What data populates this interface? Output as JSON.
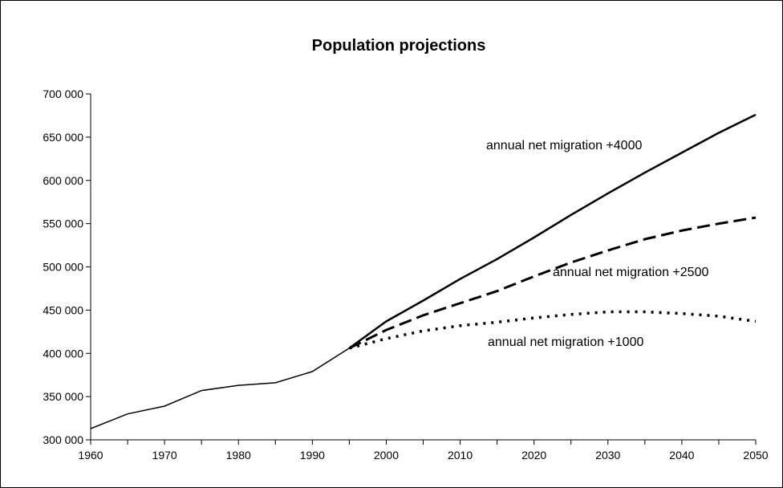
{
  "chart_data": {
    "type": "line",
    "title": "Population projections",
    "xlabel": "",
    "ylabel": "",
    "xlim": [
      1960,
      2050
    ],
    "ylim": [
      300000,
      700000
    ],
    "x_ticks": [
      "1960",
      "1970",
      "1980",
      "1990",
      "2000",
      "2010",
      "2020",
      "2030",
      "2040",
      "2050"
    ],
    "y_ticks": [
      "300 000",
      "350 000",
      "400 000",
      "450 000",
      "500 000",
      "550 000",
      "600 000",
      "650 000",
      "700 000"
    ],
    "grid": false,
    "legend": "none",
    "historical": {
      "x": [
        1960,
        1965,
        1970,
        1975,
        1980,
        1985,
        1990,
        1995
      ],
      "y": [
        313000,
        330000,
        339000,
        357000,
        363000,
        366000,
        379000,
        406000
      ]
    },
    "series": [
      {
        "name": "annual net migration +4000",
        "style": "solid",
        "x": [
          1995,
          2000,
          2005,
          2010,
          2015,
          2020,
          2025,
          2030,
          2035,
          2040,
          2045,
          2050
        ],
        "y": [
          406000,
          437000,
          461000,
          486000,
          509000,
          534000,
          560000,
          585000,
          609000,
          632000,
          655000,
          676000
        ]
      },
      {
        "name": "annual net migration +2500",
        "style": "dashed",
        "x": [
          1995,
          2000,
          2005,
          2010,
          2015,
          2020,
          2025,
          2030,
          2035,
          2040,
          2045,
          2050
        ],
        "y": [
          406000,
          427000,
          444000,
          458000,
          472000,
          489000,
          505000,
          519000,
          532000,
          542000,
          550000,
          557000
        ]
      },
      {
        "name": "annual net migration +1000",
        "style": "dotted",
        "x": [
          1995,
          2000,
          2005,
          2010,
          2015,
          2020,
          2025,
          2030,
          2035,
          2040,
          2045,
          2050
        ],
        "y": [
          406000,
          417000,
          426000,
          432000,
          436000,
          441000,
          445000,
          448000,
          448000,
          446000,
          443000,
          437000
        ]
      }
    ],
    "annotations": [
      "annual net migration +4000",
      "annual net migration +2500",
      "annual net migration +1000"
    ]
  }
}
